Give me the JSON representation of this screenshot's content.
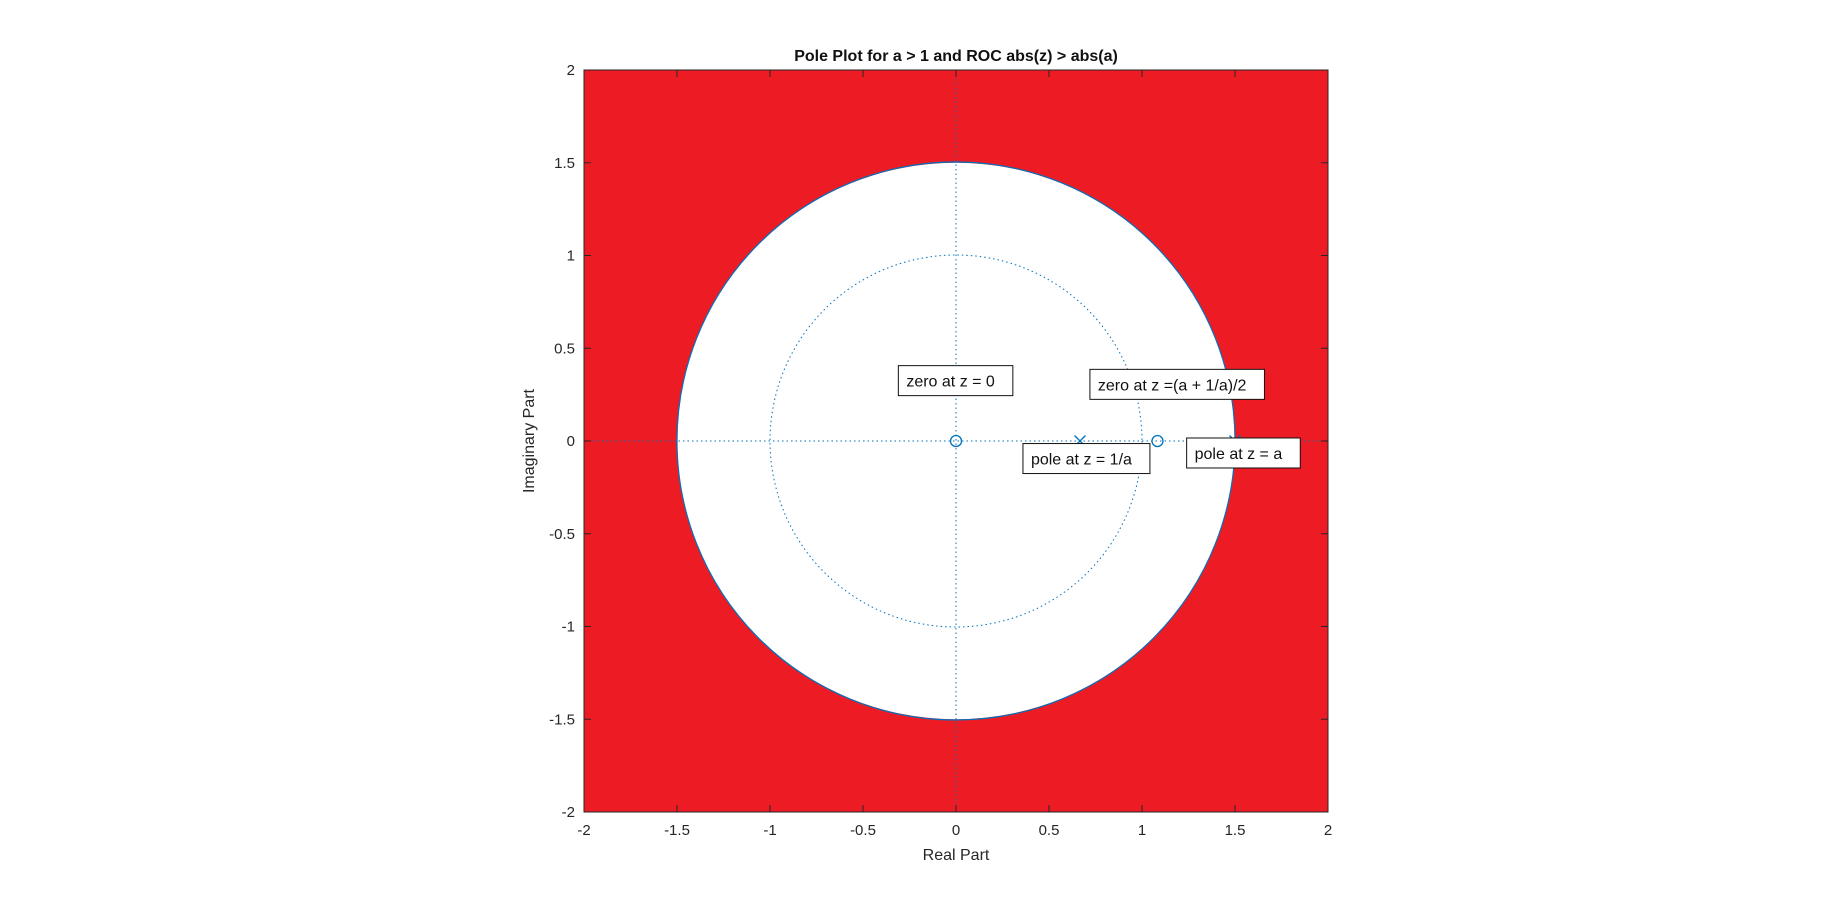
{
  "chart_data": {
    "type": "scatter",
    "title": "Pole Plot for a > 1 and ROC abs(z) > abs(a)",
    "xlabel": "Real Part",
    "ylabel": "Imaginary Part",
    "xlim": [
      -2,
      2
    ],
    "ylim": [
      -2,
      2
    ],
    "x_ticks": [
      -2,
      -1.5,
      -1,
      -0.5,
      0,
      0.5,
      1,
      1.5,
      2
    ],
    "y_ticks": [
      -2,
      -1.5,
      -1,
      -0.5,
      0,
      0.5,
      1,
      1.5,
      2
    ],
    "x_tick_labels": [
      "-2",
      "-1.5",
      "-1",
      "-0.5",
      "0",
      "0.5",
      "1",
      "1.5",
      "2"
    ],
    "y_tick_labels": [
      "-2",
      "-1.5",
      "-1",
      "-0.5",
      "0",
      "0.5",
      "1",
      "1.5",
      "2"
    ],
    "roc": {
      "description_color": "#ed1c24",
      "inner_radius": 1.5
    },
    "unit_circle_radius": 1,
    "roc_boundary_radius": 1.5,
    "zeros": [
      {
        "x": 0,
        "y": 0
      },
      {
        "x": 1.0833,
        "y": 0
      }
    ],
    "poles": [
      {
        "x": 0.6667,
        "y": 0
      },
      {
        "x": 1.5,
        "y": 0
      }
    ],
    "annotations": [
      {
        "text": "zero at z = 0",
        "x": -0.31,
        "y": 0.32
      },
      {
        "text": "zero at z =(a + 1/a)/2",
        "x": 0.72,
        "y": 0.3
      },
      {
        "text": "pole at z = 1/a",
        "x": 0.36,
        "y": -0.1
      },
      {
        "text": "pole at z = a",
        "x": 1.24,
        "y": -0.07
      }
    ],
    "colors": {
      "marker": "#0072bd",
      "roc_fill": "#ed1c24",
      "axes": "#262626",
      "grid": "#0072bd"
    },
    "grid": false
  }
}
